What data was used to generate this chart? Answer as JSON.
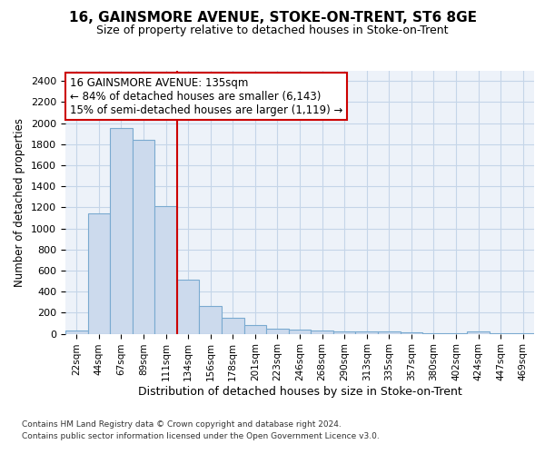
{
  "title": "16, GAINSMORE AVENUE, STOKE-ON-TRENT, ST6 8GE",
  "subtitle": "Size of property relative to detached houses in Stoke-on-Trent",
  "xlabel_bottom": "Distribution of detached houses by size in Stoke-on-Trent",
  "ylabel": "Number of detached properties",
  "bar_color": "#ccdaed",
  "bar_edge_color": "#7aaad0",
  "grid_color": "#c5d5e8",
  "background_color": "#edf2f9",
  "annotation_line1": "16 GAINSMORE AVENUE: 135sqm",
  "annotation_line2": "← 84% of detached houses are smaller (6,143)",
  "annotation_line3": "15% of semi-detached houses are larger (1,119) →",
  "vline_color": "#cc0000",
  "categories": [
    "22sqm",
    "44sqm",
    "67sqm",
    "89sqm",
    "111sqm",
    "134sqm",
    "156sqm",
    "178sqm",
    "201sqm",
    "223sqm",
    "246sqm",
    "268sqm",
    "290sqm",
    "313sqm",
    "335sqm",
    "357sqm",
    "380sqm",
    "402sqm",
    "424sqm",
    "447sqm",
    "469sqm"
  ],
  "values": [
    28,
    1145,
    1950,
    1840,
    1210,
    510,
    265,
    150,
    85,
    48,
    42,
    30,
    20,
    22,
    18,
    12,
    8,
    5,
    20,
    8,
    4
  ],
  "ylim": [
    0,
    2500
  ],
  "yticks": [
    0,
    200,
    400,
    600,
    800,
    1000,
    1200,
    1400,
    1600,
    1800,
    2000,
    2200,
    2400
  ],
  "footer1": "Contains HM Land Registry data © Crown copyright and database right 2024.",
  "footer2": "Contains public sector information licensed under the Open Government Licence v3.0.",
  "annotation_box_color": "#ffffff",
  "annotation_box_edge": "#cc0000",
  "vline_bar_index": 5
}
